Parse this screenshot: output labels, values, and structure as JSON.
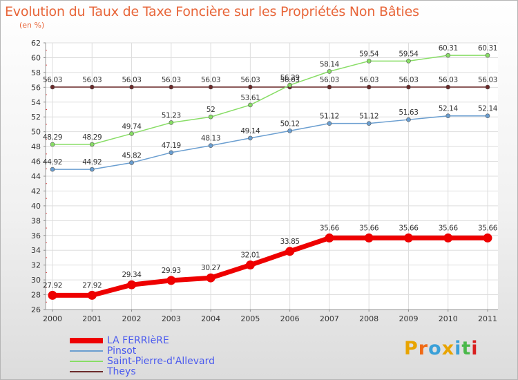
{
  "title": "Evolution du Taux de Taxe Foncière sur les Propriétés Non Bâties",
  "subtitle": "(en %)",
  "brand": {
    "text": "Proxiti",
    "colors": [
      "#e8a400",
      "#f06a16",
      "#3aa0d8",
      "#e8a400",
      "#3aa0d8",
      "#4ab84a",
      "#d81e1e"
    ]
  },
  "chart_data": {
    "type": "line",
    "x": [
      "2000",
      "2001",
      "2002",
      "2003",
      "2004",
      "2005",
      "2006",
      "2007",
      "2008",
      "2009",
      "2010",
      "2011"
    ],
    "ylim": [
      26,
      62
    ],
    "yticks": [
      "26",
      "28",
      "30",
      "32",
      "34",
      "36",
      "38",
      "40",
      "42",
      "44",
      "46",
      "48",
      "50",
      "52",
      "54",
      "56",
      "58",
      "60",
      "62"
    ],
    "grid": true,
    "legend_position": "bottom-left",
    "series": [
      {
        "name": "LA FERRIèRE",
        "color": "#ee0000",
        "values": [
          27.92,
          27.92,
          29.34,
          29.93,
          30.27,
          32.01,
          33.85,
          35.66,
          35.66,
          35.66,
          35.66,
          35.66
        ],
        "labels": [
          "27.92",
          "27.92",
          "29.34",
          "29.93",
          "30.27",
          "32.01",
          "33.85",
          "35.66",
          "35.66",
          "35.66",
          "35.66",
          "35.66"
        ]
      },
      {
        "name": "Pinsot",
        "color": "#6a9ed0",
        "values": [
          44.92,
          44.92,
          45.82,
          47.19,
          48.13,
          49.14,
          50.12,
          51.12,
          51.12,
          51.63,
          52.14,
          52.14
        ],
        "labels": [
          "44.92",
          "44.92",
          "45.82",
          "47.19",
          "48.13",
          "49.14",
          "50.12",
          "51.12",
          "51.12",
          "51.63",
          "52.14",
          "52.14"
        ]
      },
      {
        "name": "Saint-Pierre-d'Allevard",
        "color": "#88dd66",
        "values": [
          48.29,
          48.29,
          49.74,
          51.23,
          52,
          53.61,
          56.29,
          58.14,
          59.54,
          59.54,
          60.31,
          60.31
        ],
        "labels": [
          "48.29",
          "48.29",
          "49.74",
          "51.23",
          "52",
          "53.61",
          "56.29",
          "58.14",
          "59.54",
          "59.54",
          "60.31",
          "60.31"
        ]
      },
      {
        "name": "Theys",
        "color": "#6b2a2a",
        "values": [
          56.03,
          56.03,
          56.03,
          56.03,
          56.03,
          56.03,
          56.03,
          56.03,
          56.03,
          56.03,
          56.03,
          56.03
        ],
        "labels": [
          "56.03",
          "56.03",
          "56.03",
          "56.03",
          "56.03",
          "56.03",
          "56.03",
          "56.03",
          "56.03",
          "56.03",
          "56.03",
          "56.03"
        ]
      }
    ]
  }
}
